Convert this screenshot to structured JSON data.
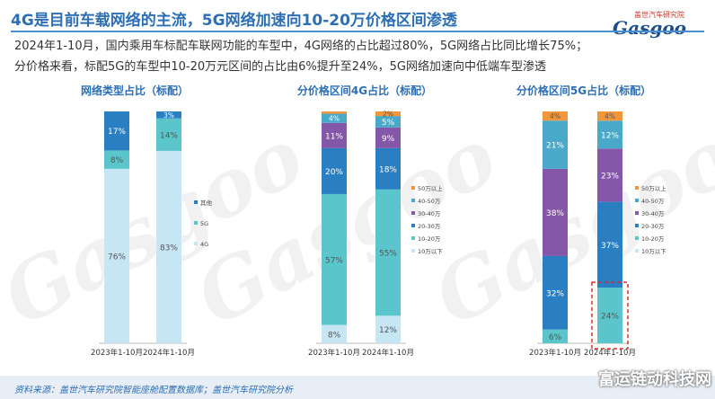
{
  "header": {
    "title": "4G是目前车载网络的主流，5G网络加速向10-20万价格区间渗透",
    "logo_cn": "盖世汽车研究院",
    "logo_en": "Gasgoo"
  },
  "summary": {
    "line1": "2024年1-10月，国内乘用车标配车联网功能的车型中，4G网络的占比超过80%，5G网络占比同比增长75%；",
    "line2": "分价格来看，标配5G的车型中10-20万元区间的占比由6%提升至24%，5G网络加速向中低端车型渗透"
  },
  "footer": {
    "source": "资料来源：盖世汽车研究院智能座舱配置数据库；盖世汽车研究院分析",
    "watermark_corner": "富运链动科技网"
  },
  "watermark": "Gasgoo",
  "colors": {
    "title": "#2d6fb2",
    "highlight_box": "#d0312d"
  },
  "chart_data": [
    {
      "type": "bar",
      "stacked": true,
      "percent": true,
      "title": "网络类型占比（标配）",
      "categories": [
        "2023年1-10月",
        "2024年1-10月"
      ],
      "series": [
        {
          "name": "4G",
          "color": "#c6e6f3",
          "values": [
            76,
            83
          ],
          "labels": [
            "76%",
            "83%"
          ]
        },
        {
          "name": "5G",
          "color": "#5ac6cc",
          "values": [
            8,
            14
          ],
          "labels": [
            "8%",
            "14%"
          ]
        },
        {
          "name": "其他",
          "color": "#2a7fc3",
          "values": [
            17,
            3
          ],
          "labels": [
            "17%",
            "3%"
          ]
        }
      ],
      "legend_position": "right"
    },
    {
      "type": "bar",
      "stacked": true,
      "percent": true,
      "title": "分价格区间4G占比（标配）",
      "categories": [
        "2023年1-10月",
        "2024年1-10月"
      ],
      "series": [
        {
          "name": "10万以下",
          "color": "#c6e6f3",
          "values": [
            8,
            12
          ],
          "labels": [
            "8%",
            "12%"
          ]
        },
        {
          "name": "10-20万",
          "color": "#5ac6cc",
          "values": [
            57,
            55
          ],
          "labels": [
            "57%",
            "55%"
          ]
        },
        {
          "name": "20-30万",
          "color": "#2a7fc3",
          "values": [
            20,
            18
          ],
          "labels": [
            "20%",
            "18%"
          ]
        },
        {
          "name": "30-40万",
          "color": "#8457a8",
          "values": [
            11,
            9
          ],
          "labels": [
            "11%",
            "9%"
          ]
        },
        {
          "name": "40-50万",
          "color": "#4aa9c9",
          "values": [
            4,
            5
          ],
          "labels": [
            "4%",
            "5%"
          ]
        },
        {
          "name": "50万以上",
          "color": "#f0963c",
          "values": [
            1,
            2
          ],
          "labels": [
            "",
            "2%"
          ]
        }
      ],
      "legend_position": "right"
    },
    {
      "type": "bar",
      "stacked": true,
      "percent": true,
      "title": "分价格区间5G占比（标配）",
      "categories": [
        "2023年1-10月",
        "2024年1-10月"
      ],
      "series": [
        {
          "name": "10万以下",
          "color": "#c6e6f3",
          "values": [
            0,
            0
          ],
          "labels": [
            "",
            ""
          ]
        },
        {
          "name": "10-20万",
          "color": "#5ac6cc",
          "values": [
            6,
            24
          ],
          "labels": [
            "6%",
            "24%"
          ]
        },
        {
          "name": "20-30万",
          "color": "#2a7fc3",
          "values": [
            32,
            37
          ],
          "labels": [
            "32%",
            "37%"
          ]
        },
        {
          "name": "30-40万",
          "color": "#8457a8",
          "values": [
            38,
            23
          ],
          "labels": [
            "38%",
            "23%"
          ]
        },
        {
          "name": "40-50万",
          "color": "#4aa9c9",
          "values": [
            21,
            12
          ],
          "labels": [
            "21%",
            "12%"
          ]
        },
        {
          "name": "50万以上",
          "color": "#f0963c",
          "values": [
            4,
            4
          ],
          "labels": [
            "4%",
            "4%"
          ]
        }
      ],
      "legend_position": "right",
      "highlight": {
        "category": "2024年1-10月",
        "series": "10-20万"
      }
    }
  ]
}
